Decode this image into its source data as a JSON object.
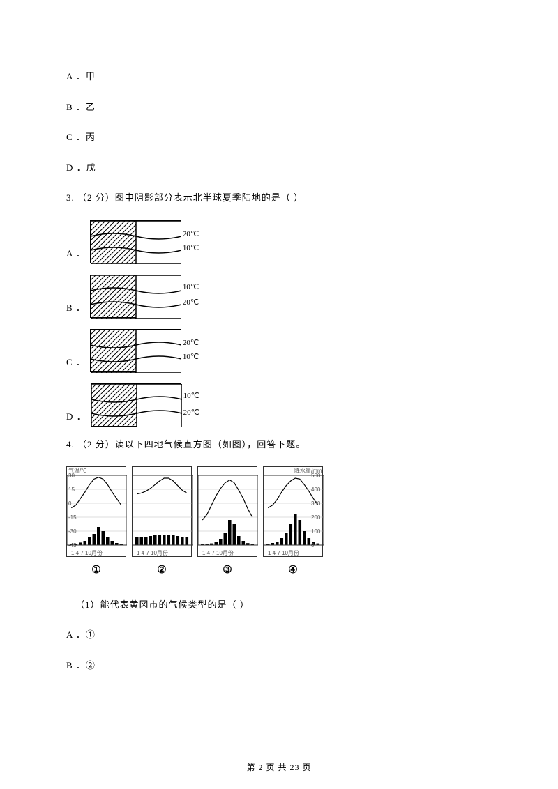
{
  "options_top": {
    "a": "A ．甲",
    "b": "B ．乙",
    "c": "C ．丙",
    "d": "D ．戊"
  },
  "q3": {
    "text": "3.  （2 分）图中阴影部分表示北半球夏季陆地的是（     ）",
    "choices": {
      "a": {
        "label": "A ．",
        "top_temp": "20℃",
        "bot_temp": "10℃",
        "top_pos": 20,
        "bot_pos": 36,
        "curve_up": true
      },
      "b": {
        "label": "B ．",
        "top_temp": "10℃",
        "bot_temp": "20℃",
        "top_pos": 18,
        "bot_pos": 36,
        "curve_up": true
      },
      "c": {
        "label": "C ．",
        "top_temp": "20℃",
        "bot_temp": "10℃",
        "top_pos": 20,
        "bot_pos": 36,
        "curve_up": false
      },
      "d": {
        "label": "D ．",
        "top_temp": "10℃",
        "bot_temp": "20℃",
        "top_pos": 18,
        "bot_pos": 38,
        "curve_up": false
      }
    }
  },
  "q4": {
    "text": "4.  （2 分）读以下四地气候直方图（如图），回答下题。",
    "left_axis_label": "气温/℃",
    "right_axis_label": "降水量/mm",
    "left_ticks": [
      "30",
      "15",
      "0",
      "-15",
      "-30",
      "-45"
    ],
    "right_ticks": [
      "500",
      "400",
      "300",
      "200",
      "100",
      "0"
    ],
    "x_ticks": "1  4  7  10月份",
    "panels": [
      {
        "id": "①",
        "temp": [
          -5,
          -2,
          5,
          12,
          20,
          26,
          28,
          26,
          20,
          12,
          5,
          -2
        ],
        "precip": [
          5,
          8,
          18,
          30,
          55,
          80,
          130,
          100,
          60,
          30,
          15,
          6
        ]
      },
      {
        "id": "②",
        "temp": [
          10,
          11,
          13,
          16,
          20,
          24,
          27,
          27,
          24,
          19,
          14,
          11
        ],
        "precip": [
          60,
          55,
          60,
          65,
          70,
          75,
          70,
          75,
          70,
          65,
          60,
          60
        ]
      },
      {
        "id": "③",
        "temp": [
          -18,
          -12,
          -2,
          8,
          16,
          22,
          25,
          22,
          14,
          5,
          -6,
          -15
        ],
        "precip": [
          6,
          8,
          12,
          25,
          45,
          90,
          180,
          150,
          65,
          30,
          14,
          8
        ]
      },
      {
        "id": "④",
        "temp": [
          -5,
          -2,
          4,
          12,
          19,
          24,
          27,
          26,
          20,
          13,
          5,
          -2
        ],
        "precip": [
          10,
          15,
          25,
          50,
          90,
          150,
          220,
          180,
          100,
          50,
          25,
          12
        ]
      }
    ],
    "sub_q1": "（1）能代表黄冈市的气候类型的是（     ）",
    "sub_opts": {
      "a": "A ．①",
      "b": "B ．②"
    }
  },
  "footer": "第 2 页 共 23 页",
  "colors": {
    "line": "#000000",
    "hatch": "#000000",
    "grid": "#cccccc"
  }
}
